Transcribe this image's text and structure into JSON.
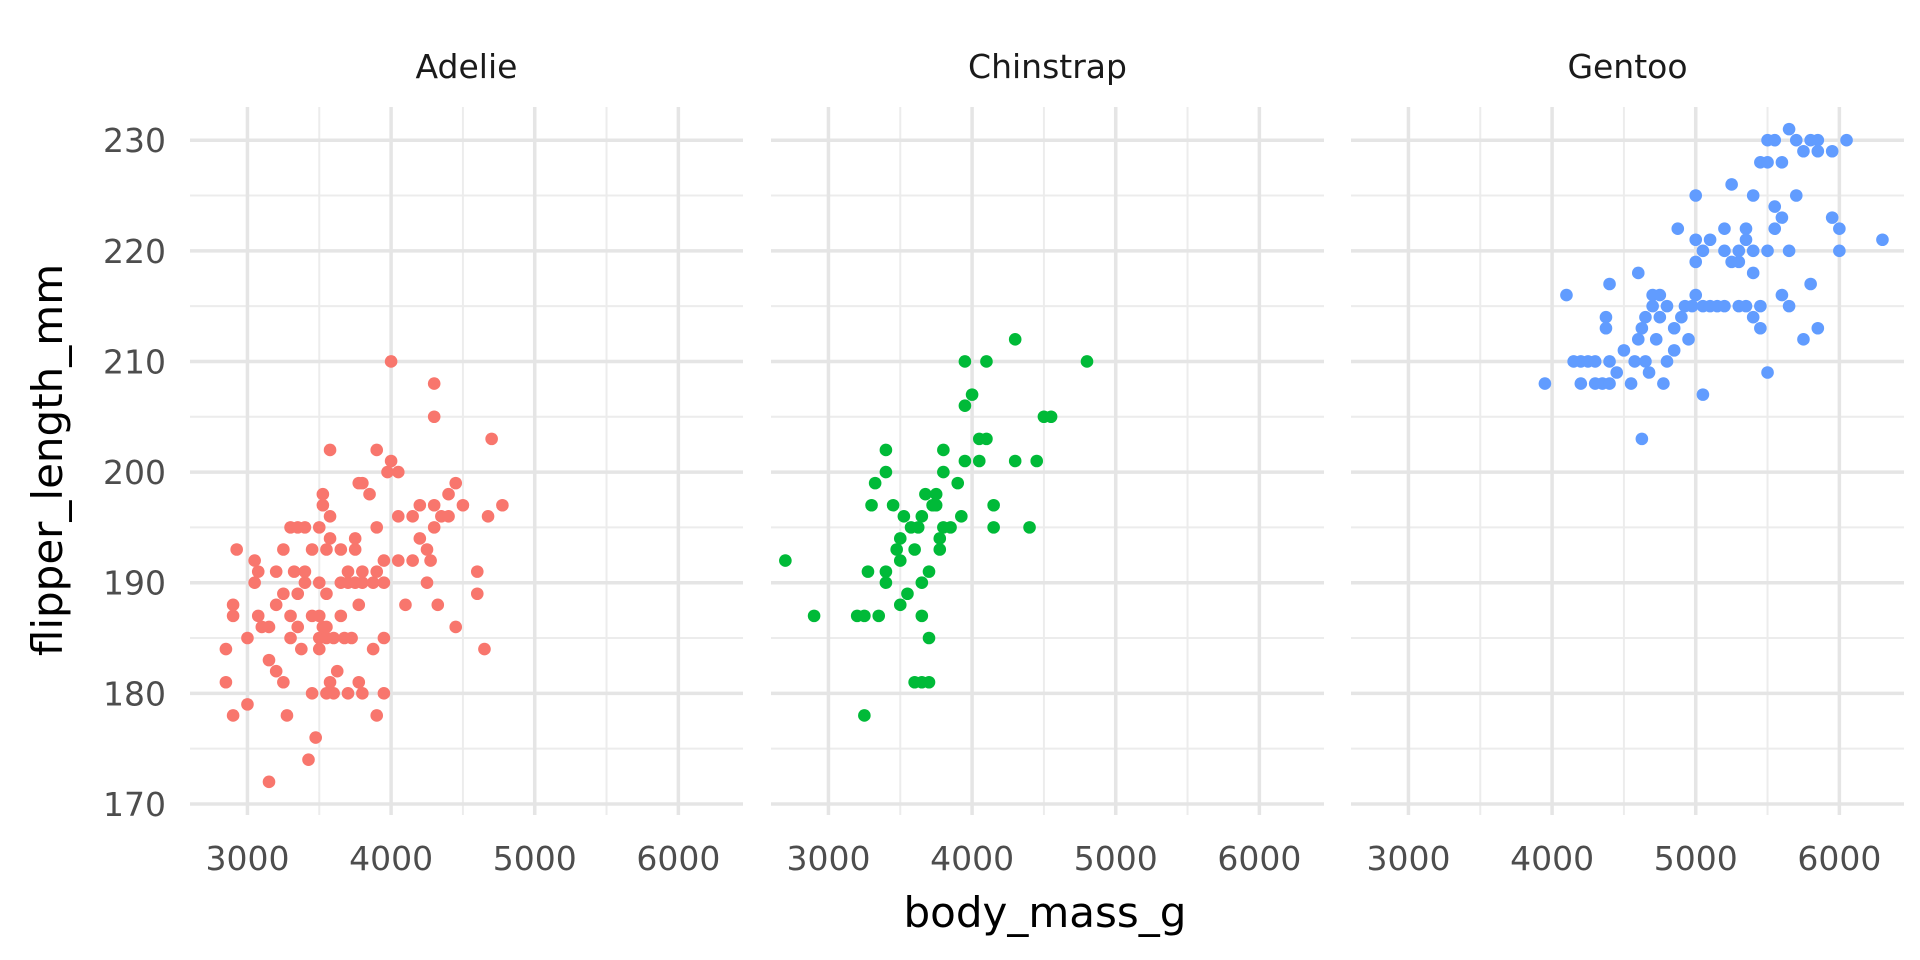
{
  "chart_data": {
    "type": "scatter",
    "facet_by": "species",
    "xlabel": "body_mass_g",
    "ylabel": "flipper_length_mm",
    "xlim": [
      2600,
      6450
    ],
    "ylim": [
      169,
      233
    ],
    "x_ticks": [
      3000,
      4000,
      5000,
      6000
    ],
    "y_ticks": [
      170,
      180,
      190,
      200,
      210,
      220,
      230
    ],
    "grid": true,
    "legend": "none",
    "panels": [
      {
        "name": "Adelie",
        "color": "#F8766D",
        "points": [
          [
            2850,
            181
          ],
          [
            2850,
            184
          ],
          [
            2900,
            178
          ],
          [
            2900,
            187
          ],
          [
            2900,
            188
          ],
          [
            2925,
            193
          ],
          [
            3000,
            179
          ],
          [
            3000,
            185
          ],
          [
            3050,
            192
          ],
          [
            3075,
            187
          ],
          [
            3050,
            190
          ],
          [
            3075,
            191
          ],
          [
            3100,
            186
          ],
          [
            3150,
            172
          ],
          [
            3150,
            183
          ],
          [
            3150,
            186
          ],
          [
            3200,
            182
          ],
          [
            3200,
            188
          ],
          [
            3200,
            191
          ],
          [
            3250,
            181
          ],
          [
            3250,
            189
          ],
          [
            3250,
            193
          ],
          [
            3275,
            178
          ],
          [
            3300,
            185
          ],
          [
            3300,
            187
          ],
          [
            3300,
            195
          ],
          [
            3325,
            191
          ],
          [
            3350,
            186
          ],
          [
            3350,
            189
          ],
          [
            3350,
            195
          ],
          [
            3375,
            184
          ],
          [
            3400,
            190
          ],
          [
            3400,
            191
          ],
          [
            3400,
            195
          ],
          [
            3425,
            174
          ],
          [
            3450,
            180
          ],
          [
            3450,
            187
          ],
          [
            3450,
            193
          ],
          [
            3475,
            176
          ],
          [
            3500,
            184
          ],
          [
            3500,
            185
          ],
          [
            3500,
            187
          ],
          [
            3500,
            190
          ],
          [
            3500,
            195
          ],
          [
            3525,
            186
          ],
          [
            3525,
            197
          ],
          [
            3525,
            198
          ],
          [
            3550,
            180
          ],
          [
            3550,
            185
          ],
          [
            3550,
            186
          ],
          [
            3550,
            189
          ],
          [
            3550,
            193
          ],
          [
            3575,
            181
          ],
          [
            3575,
            194
          ],
          [
            3575,
            196
          ],
          [
            3575,
            202
          ],
          [
            3600,
            180
          ],
          [
            3600,
            185
          ],
          [
            3625,
            182
          ],
          [
            3650,
            187
          ],
          [
            3650,
            190
          ],
          [
            3650,
            193
          ],
          [
            3675,
            185
          ],
          [
            3700,
            180
          ],
          [
            3700,
            190
          ],
          [
            3700,
            191
          ],
          [
            3725,
            185
          ],
          [
            3750,
            190
          ],
          [
            3750,
            193
          ],
          [
            3750,
            194
          ],
          [
            3775,
            181
          ],
          [
            3775,
            188
          ],
          [
            3775,
            199
          ],
          [
            3800,
            180
          ],
          [
            3800,
            190
          ],
          [
            3800,
            191
          ],
          [
            3800,
            199
          ],
          [
            3850,
            198
          ],
          [
            3875,
            184
          ],
          [
            3875,
            190
          ],
          [
            3900,
            178
          ],
          [
            3900,
            191
          ],
          [
            3900,
            195
          ],
          [
            3900,
            202
          ],
          [
            3950,
            180
          ],
          [
            3950,
            185
          ],
          [
            3950,
            190
          ],
          [
            3950,
            192
          ],
          [
            3975,
            200
          ],
          [
            4000,
            201
          ],
          [
            4000,
            210
          ],
          [
            4050,
            192
          ],
          [
            4050,
            196
          ],
          [
            4050,
            200
          ],
          [
            4100,
            188
          ],
          [
            4150,
            192
          ],
          [
            4150,
            196
          ],
          [
            4200,
            197
          ],
          [
            4200,
            194
          ],
          [
            4250,
            190
          ],
          [
            4250,
            193
          ],
          [
            4275,
            192
          ],
          [
            4300,
            195
          ],
          [
            4300,
            197
          ],
          [
            4300,
            205
          ],
          [
            4300,
            208
          ],
          [
            4325,
            188
          ],
          [
            4350,
            196
          ],
          [
            4400,
            196
          ],
          [
            4400,
            198
          ],
          [
            4450,
            186
          ],
          [
            4450,
            199
          ],
          [
            4500,
            197
          ],
          [
            4600,
            189
          ],
          [
            4600,
            191
          ],
          [
            4650,
            184
          ],
          [
            4675,
            196
          ],
          [
            4700,
            203
          ],
          [
            4775,
            197
          ]
        ]
      },
      {
        "name": "Chinstrap",
        "color": "#00BA38",
        "points": [
          [
            2700,
            192
          ],
          [
            2900,
            187
          ],
          [
            3200,
            187
          ],
          [
            3250,
            178
          ],
          [
            3250,
            187
          ],
          [
            3275,
            191
          ],
          [
            3300,
            197
          ],
          [
            3325,
            199
          ],
          [
            3350,
            187
          ],
          [
            3400,
            190
          ],
          [
            3400,
            191
          ],
          [
            3400,
            200
          ],
          [
            3400,
            202
          ],
          [
            3450,
            197
          ],
          [
            3475,
            193
          ],
          [
            3500,
            188
          ],
          [
            3500,
            192
          ],
          [
            3500,
            194
          ],
          [
            3525,
            196
          ],
          [
            3550,
            189
          ],
          [
            3575,
            195
          ],
          [
            3600,
            181
          ],
          [
            3600,
            193
          ],
          [
            3625,
            195
          ],
          [
            3650,
            181
          ],
          [
            3650,
            187
          ],
          [
            3650,
            190
          ],
          [
            3650,
            196
          ],
          [
            3675,
            198
          ],
          [
            3700,
            181
          ],
          [
            3700,
            185
          ],
          [
            3700,
            191
          ],
          [
            3725,
            197
          ],
          [
            3750,
            197
          ],
          [
            3750,
            198
          ],
          [
            3775,
            193
          ],
          [
            3775,
            194
          ],
          [
            3800,
            195
          ],
          [
            3800,
            200
          ],
          [
            3800,
            202
          ],
          [
            3850,
            195
          ],
          [
            3900,
            199
          ],
          [
            3925,
            196
          ],
          [
            3950,
            201
          ],
          [
            3950,
            206
          ],
          [
            3950,
            210
          ],
          [
            4000,
            207
          ],
          [
            4050,
            201
          ],
          [
            4050,
            203
          ],
          [
            4100,
            203
          ],
          [
            4100,
            210
          ],
          [
            4150,
            195
          ],
          [
            4150,
            197
          ],
          [
            4300,
            201
          ],
          [
            4300,
            212
          ],
          [
            4400,
            195
          ],
          [
            4450,
            201
          ],
          [
            4500,
            205
          ],
          [
            4550,
            205
          ],
          [
            4800,
            210
          ]
        ]
      },
      {
        "name": "Gentoo",
        "color": "#619CFF",
        "points": [
          [
            3950,
            208
          ],
          [
            4100,
            216
          ],
          [
            4150,
            210
          ],
          [
            4200,
            208
          ],
          [
            4200,
            210
          ],
          [
            4250,
            210
          ],
          [
            4300,
            208
          ],
          [
            4300,
            210
          ],
          [
            4350,
            208
          ],
          [
            4375,
            213
          ],
          [
            4375,
            214
          ],
          [
            4400,
            208
          ],
          [
            4400,
            210
          ],
          [
            4400,
            217
          ],
          [
            4450,
            209
          ],
          [
            4500,
            211
          ],
          [
            4550,
            208
          ],
          [
            4575,
            210
          ],
          [
            4600,
            212
          ],
          [
            4600,
            218
          ],
          [
            4625,
            203
          ],
          [
            4625,
            213
          ],
          [
            4650,
            214
          ],
          [
            4650,
            210
          ],
          [
            4675,
            209
          ],
          [
            4700,
            215
          ],
          [
            4700,
            216
          ],
          [
            4725,
            212
          ],
          [
            4750,
            214
          ],
          [
            4750,
            216
          ],
          [
            4775,
            208
          ],
          [
            4800,
            210
          ],
          [
            4800,
            215
          ],
          [
            4850,
            211
          ],
          [
            4850,
            213
          ],
          [
            4875,
            222
          ],
          [
            4900,
            214
          ],
          [
            4925,
            215
          ],
          [
            4950,
            212
          ],
          [
            4975,
            215
          ],
          [
            5000,
            216
          ],
          [
            5000,
            219
          ],
          [
            5000,
            221
          ],
          [
            5000,
            225
          ],
          [
            5050,
            207
          ],
          [
            5050,
            215
          ],
          [
            5050,
            220
          ],
          [
            5100,
            215
          ],
          [
            5100,
            221
          ],
          [
            5150,
            215
          ],
          [
            5200,
            215
          ],
          [
            5200,
            220
          ],
          [
            5200,
            222
          ],
          [
            5250,
            219
          ],
          [
            5250,
            226
          ],
          [
            5300,
            215
          ],
          [
            5300,
            219
          ],
          [
            5300,
            220
          ],
          [
            5350,
            215
          ],
          [
            5350,
            221
          ],
          [
            5350,
            222
          ],
          [
            5400,
            214
          ],
          [
            5400,
            218
          ],
          [
            5400,
            220
          ],
          [
            5400,
            225
          ],
          [
            5450,
            213
          ],
          [
            5450,
            215
          ],
          [
            5450,
            228
          ],
          [
            5500,
            209
          ],
          [
            5500,
            220
          ],
          [
            5500,
            228
          ],
          [
            5500,
            230
          ],
          [
            5550,
            222
          ],
          [
            5550,
            224
          ],
          [
            5550,
            230
          ],
          [
            5600,
            216
          ],
          [
            5600,
            223
          ],
          [
            5600,
            228
          ],
          [
            5650,
            215
          ],
          [
            5650,
            220
          ],
          [
            5650,
            231
          ],
          [
            5700,
            225
          ],
          [
            5700,
            230
          ],
          [
            5750,
            212
          ],
          [
            5750,
            229
          ],
          [
            5800,
            217
          ],
          [
            5800,
            230
          ],
          [
            5850,
            213
          ],
          [
            5850,
            229
          ],
          [
            5850,
            230
          ],
          [
            5950,
            223
          ],
          [
            5950,
            229
          ],
          [
            6000,
            220
          ],
          [
            6000,
            222
          ],
          [
            6050,
            230
          ],
          [
            6300,
            221
          ]
        ]
      }
    ]
  }
}
